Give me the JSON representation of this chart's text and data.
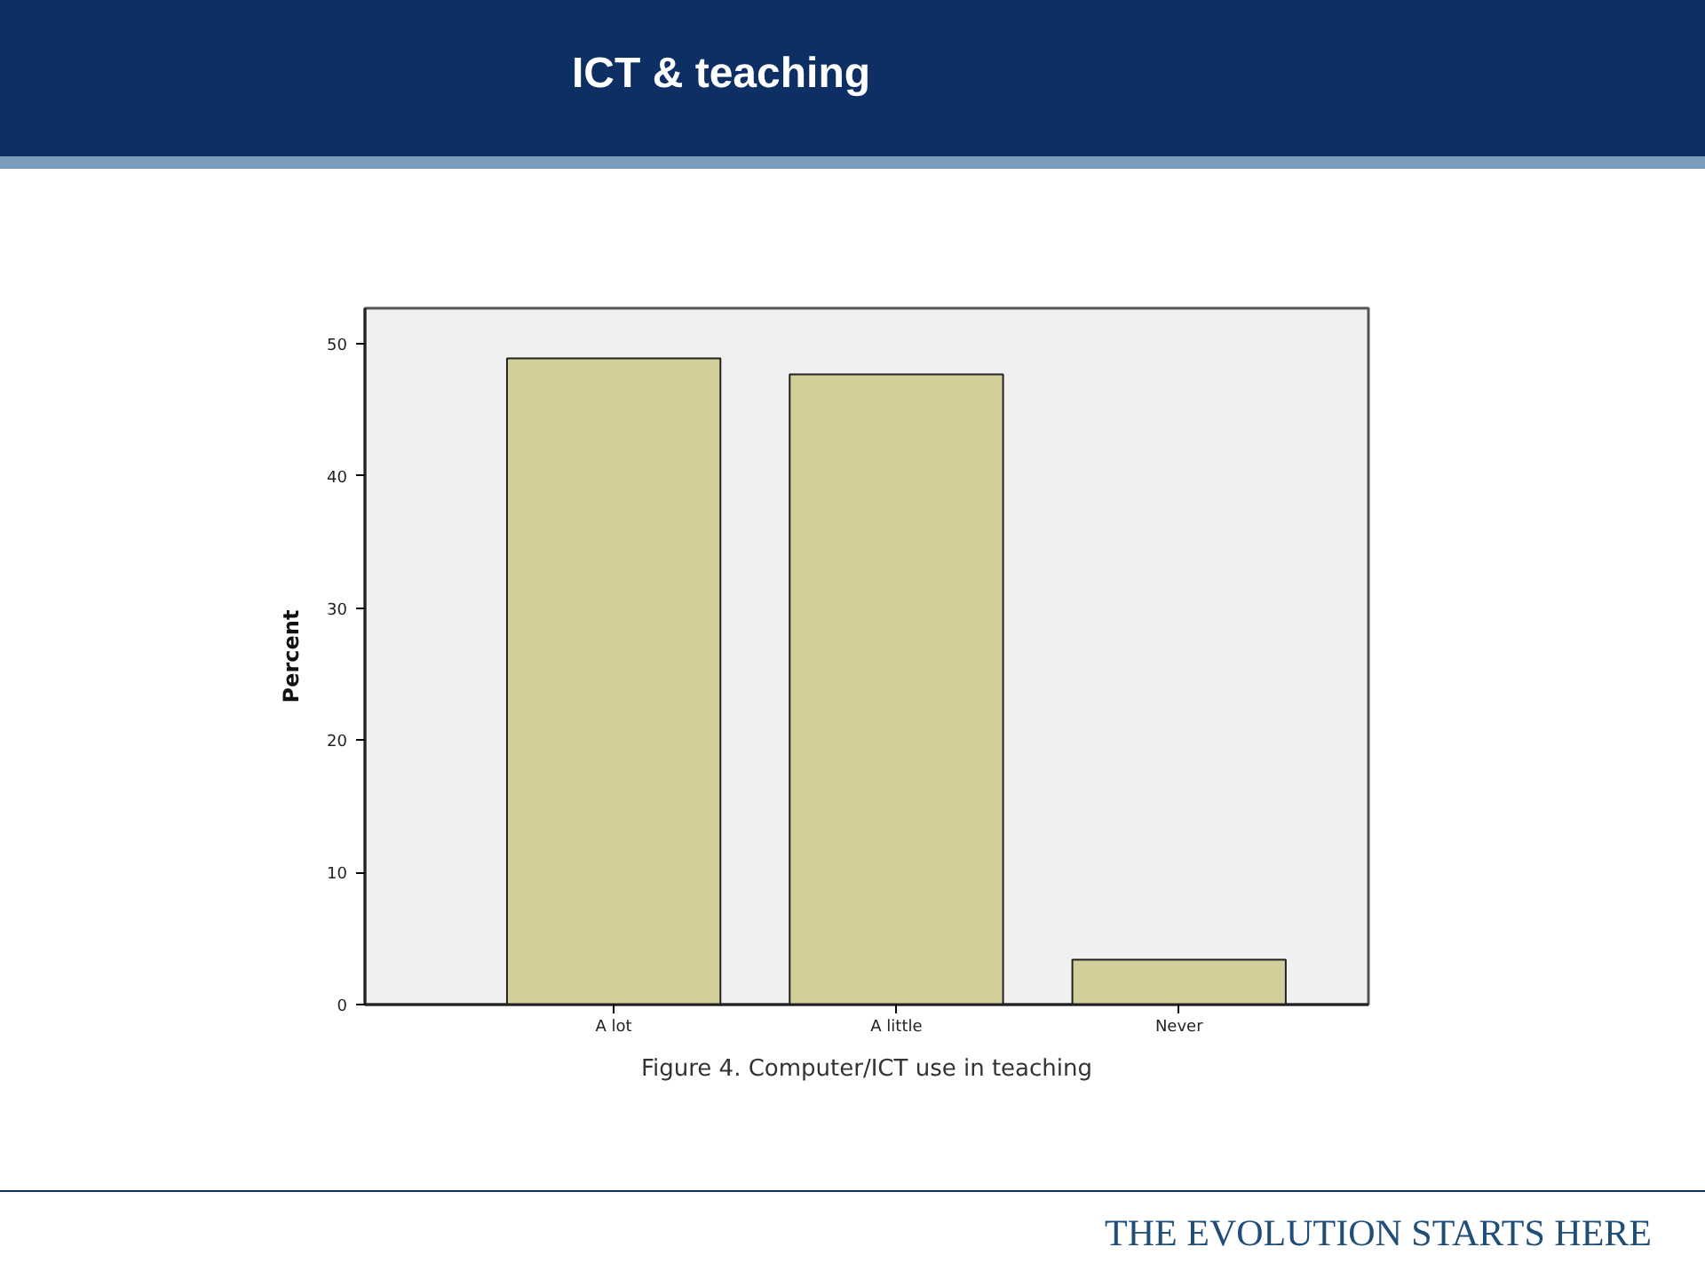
{
  "chart_data": {
    "type": "bar",
    "title": "ICT & teaching",
    "xlabel": "Figure 4. Computer/ICT use in teaching",
    "ylabel": "Percent",
    "categories": [
      "A lot",
      "A little",
      "Never"
    ],
    "values": [
      48.9,
      47.7,
      3.4
    ],
    "color": "#d3cf9a",
    "ylim": [
      0,
      52.7
    ],
    "yticks": [
      0,
      10,
      20,
      30,
      40,
      50
    ],
    "grid": false,
    "annotations": [
      "THE EVOLUTION STARTS HERE"
    ]
  }
}
